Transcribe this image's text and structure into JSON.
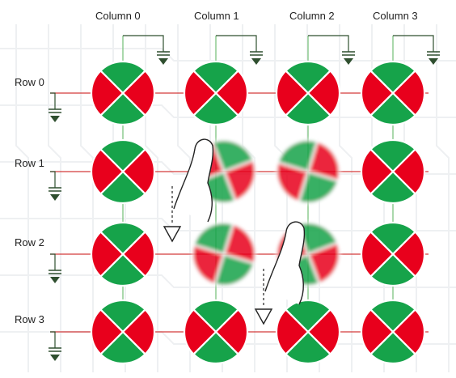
{
  "columns": [
    {
      "label": "Column 0"
    },
    {
      "label": "Column 1"
    },
    {
      "label": "Column 2"
    },
    {
      "label": "Column 3"
    }
  ],
  "rows": [
    {
      "label": "Row 0"
    },
    {
      "label": "Row 1"
    },
    {
      "label": "Row 2"
    },
    {
      "label": "Row 3"
    }
  ],
  "touched_sensors": [
    {
      "row": 1,
      "col": 1
    },
    {
      "row": 1,
      "col": 2
    },
    {
      "row": 2,
      "col": 1
    },
    {
      "row": 2,
      "col": 2
    }
  ],
  "fingers": [
    {
      "near_row": 1,
      "near_col": 1
    },
    {
      "near_row": 2,
      "near_col": 2
    }
  ],
  "colors": {
    "sensor_red": "#e8001c",
    "sensor_green": "#16a34a",
    "row_trace": "#d33b3b",
    "column_trace": "#7cc47f",
    "ground": "#2f4f2f",
    "background_circuit": "#eef0f2"
  }
}
